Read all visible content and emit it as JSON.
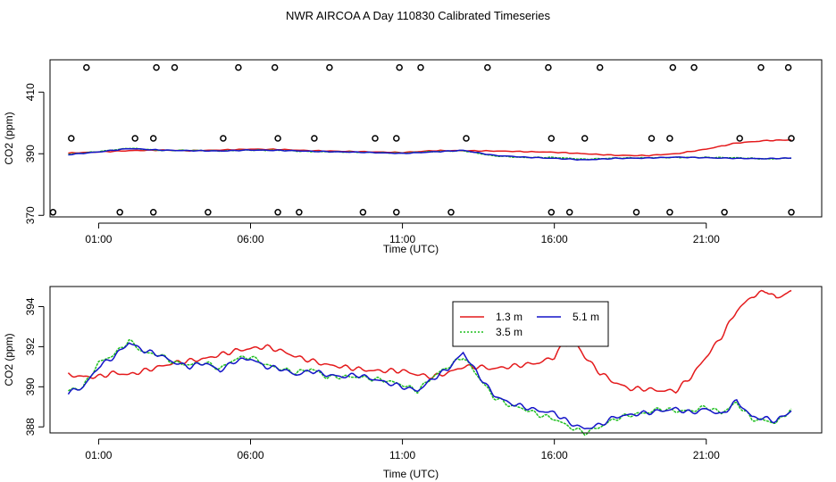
{
  "page_title": "NWR AIRCOA A  Day 110830  Calibrated Timeseries",
  "colors": {
    "h13": "#e41a1c",
    "h35": "#1fbf1f",
    "h51": "#1414c8",
    "frame": "#000000"
  },
  "chart_data": [
    {
      "type": "line",
      "title": "",
      "xlabel": "Time (UTC)",
      "ylabel": "CO2 (ppm)",
      "xlim": [
        -0.6,
        24.8
      ],
      "ylim": [
        369.5,
        420.5
      ],
      "xticks": [
        1,
        6,
        11,
        16,
        21
      ],
      "xtick_labels": [
        "01:00",
        "06:00",
        "11:00",
        "16:00",
        "21:00"
      ],
      "yticks": [
        370,
        390,
        410
      ],
      "ytick_labels": [
        "370",
        "390",
        "410"
      ],
      "grid": false,
      "series": [
        {
          "key": "h13",
          "color": "#e41a1c",
          "x": [
            0,
            1,
            2,
            3,
            4,
            5,
            6,
            7,
            8,
            9,
            10,
            11,
            12,
            13,
            14,
            15,
            16,
            17,
            18,
            19,
            20,
            21,
            22,
            23,
            23.8
          ],
          "y": [
            390.2,
            390.6,
            391.0,
            391.2,
            391.0,
            391.2,
            391.5,
            391.4,
            391.0,
            390.8,
            390.6,
            390.4,
            391.0,
            391.0,
            390.9,
            390.7,
            390.5,
            390.0,
            389.5,
            389.4,
            390.0,
            391.5,
            393.5,
            394.3,
            394.5
          ]
        },
        {
          "key": "h35",
          "color": "#1fbf1f",
          "x": [
            0,
            1,
            2,
            3,
            4,
            5,
            6,
            7,
            8,
            9,
            10,
            11,
            12,
            13,
            14,
            15,
            16,
            17,
            18,
            19,
            20,
            21,
            22,
            23,
            23.8
          ],
          "y": [
            389.8,
            390.7,
            391.8,
            391.1,
            391.1,
            390.9,
            391.2,
            391.1,
            390.7,
            390.6,
            390.4,
            390.2,
            390.7,
            391.0,
            389.3,
            388.8,
            388.8,
            388.2,
            388.6,
            388.7,
            388.8,
            388.8,
            388.7,
            388.3,
            388.6
          ]
        },
        {
          "key": "h51",
          "color": "#1414c8",
          "x": [
            0,
            1,
            2,
            3,
            4,
            5,
            6,
            7,
            8,
            9,
            10,
            11,
            12,
            13,
            14,
            15,
            16,
            17,
            18,
            19,
            20,
            21,
            22,
            23,
            23.8
          ],
          "y": [
            389.7,
            390.6,
            391.7,
            391.2,
            391.0,
            390.9,
            391.2,
            391.1,
            390.8,
            390.6,
            390.4,
            390.1,
            390.6,
            391.1,
            389.5,
            388.9,
            388.5,
            388.0,
            388.5,
            388.6,
            388.9,
            388.7,
            388.5,
            388.4,
            388.6
          ]
        }
      ],
      "markers": {
        "levels": [
          371,
          395,
          418
        ],
        "x_low": [
          -0.5,
          1.7,
          2.8,
          4.6,
          6.9,
          7.6,
          9.7,
          10.8,
          12.6,
          15.9,
          16.5,
          18.7,
          19.8,
          21.6,
          23.8
        ],
        "x_mid": [
          0.1,
          2.2,
          2.8,
          5.1,
          6.9,
          8.1,
          10.1,
          10.8,
          13.1,
          15.9,
          17.0,
          19.2,
          19.8,
          22.1,
          23.8
        ],
        "x_high": [
          0.6,
          2.9,
          3.5,
          5.6,
          6.8,
          8.6,
          10.9,
          11.6,
          13.8,
          15.8,
          17.5,
          19.9,
          20.6,
          22.8,
          23.7
        ]
      }
    },
    {
      "type": "line",
      "title": "",
      "xlabel": "Time (UTC)",
      "ylabel": "CO2 (ppm)",
      "xlim": [
        -0.6,
        24.8
      ],
      "ylim": [
        387.7,
        395.0
      ],
      "xticks": [
        1,
        6,
        11,
        16,
        21
      ],
      "xtick_labels": [
        "01:00",
        "06:00",
        "11:00",
        "16:00",
        "21:00"
      ],
      "yticks": [
        388,
        390,
        392,
        394
      ],
      "ytick_labels": [
        "388",
        "390",
        "392",
        "394"
      ],
      "grid": false,
      "legend_position": "top-center",
      "series": [
        {
          "key": "h13",
          "name": "1.3 m",
          "color": "#e41a1c",
          "x": [
            0,
            0.5,
            1,
            1.5,
            2,
            2.5,
            3,
            3.5,
            4,
            4.5,
            5,
            5.5,
            6,
            6.5,
            7,
            7.5,
            8,
            8.5,
            9,
            9.5,
            10,
            10.5,
            11,
            11.5,
            12,
            12.5,
            13,
            13.5,
            14,
            14.5,
            15,
            15.5,
            16,
            16.3,
            16.7,
            17,
            17.5,
            18,
            18.5,
            19,
            19.5,
            20,
            20.5,
            21,
            21.5,
            22,
            22.5,
            23,
            23.3,
            23.8
          ],
          "y": [
            390.6,
            390.5,
            390.5,
            390.7,
            390.6,
            390.8,
            391.0,
            391.2,
            391.3,
            391.4,
            391.6,
            391.8,
            391.9,
            392.0,
            391.8,
            391.5,
            391.3,
            391.1,
            391.0,
            390.9,
            390.8,
            390.8,
            390.8,
            390.6,
            390.5,
            390.7,
            391.0,
            391.0,
            390.9,
            391.0,
            391.1,
            391.2,
            391.5,
            392.1,
            392.2,
            391.5,
            390.7,
            390.2,
            389.9,
            389.9,
            389.8,
            389.8,
            390.5,
            391.5,
            392.5,
            393.8,
            394.5,
            394.8,
            394.4,
            394.8
          ]
        },
        {
          "key": "h35",
          "name": "3.5 m",
          "color": "#1fbf1f",
          "x": [
            0,
            0.5,
            1,
            1.5,
            2,
            2.5,
            3,
            3.5,
            4,
            4.5,
            5,
            5.5,
            6,
            6.5,
            7,
            7.5,
            8,
            8.5,
            9,
            9.5,
            10,
            10.5,
            11,
            11.5,
            12,
            12.5,
            13,
            13.5,
            14,
            14.5,
            15,
            15.5,
            16,
            16.5,
            17,
            17.5,
            18,
            18.5,
            19,
            19.5,
            20,
            20.5,
            21,
            21.5,
            22,
            22.5,
            23,
            23.3,
            23.8
          ],
          "y": [
            389.8,
            390.0,
            391.2,
            391.6,
            392.3,
            391.7,
            391.6,
            391.2,
            391.1,
            391.2,
            390.9,
            391.4,
            391.5,
            391.1,
            390.9,
            390.7,
            390.9,
            390.5,
            390.5,
            390.5,
            390.4,
            390.3,
            390.1,
            389.8,
            390.5,
            391.0,
            391.5,
            390.5,
            389.5,
            389.1,
            388.9,
            388.6,
            388.4,
            388.0,
            387.7,
            388.0,
            388.4,
            388.6,
            388.7,
            388.9,
            388.8,
            388.8,
            389.0,
            388.7,
            389.2,
            388.4,
            388.3,
            388.2,
            388.9
          ]
        },
        {
          "key": "h51",
          "name": "5.1 m",
          "color": "#1414c8",
          "x": [
            0,
            0.5,
            1,
            1.5,
            2,
            2.5,
            3,
            3.5,
            4,
            4.5,
            5,
            5.5,
            6,
            6.5,
            7,
            7.5,
            8,
            8.5,
            9,
            9.5,
            10,
            10.5,
            11,
            11.5,
            12,
            12.5,
            13,
            13.5,
            14,
            14.5,
            15,
            15.5,
            16,
            16.5,
            17,
            17.5,
            18,
            18.5,
            19,
            19.5,
            20,
            20.5,
            21,
            21.5,
            22,
            22.5,
            23,
            23.3,
            23.8
          ],
          "y": [
            389.7,
            390.0,
            391.0,
            391.5,
            392.2,
            391.8,
            391.6,
            391.2,
            391.0,
            391.2,
            390.8,
            391.3,
            391.4,
            391.0,
            390.9,
            390.6,
            390.8,
            390.6,
            390.5,
            390.6,
            390.4,
            390.2,
            390.0,
            389.8,
            390.4,
            390.9,
            391.7,
            390.6,
            389.6,
            389.2,
            389.0,
            388.8,
            388.7,
            388.2,
            387.9,
            388.1,
            388.5,
            388.6,
            388.7,
            388.8,
            388.9,
            388.7,
            388.9,
            388.6,
            389.3,
            388.5,
            388.4,
            388.3,
            388.8
          ]
        }
      ]
    }
  ]
}
